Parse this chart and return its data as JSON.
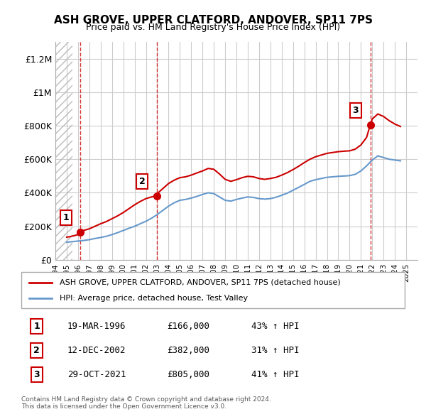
{
  "title": "ASH GROVE, UPPER CLATFORD, ANDOVER, SP11 7PS",
  "subtitle": "Price paid vs. HM Land Registry's House Price Index (HPI)",
  "ylim": [
    0,
    1300000
  ],
  "xlim_start": 1994.0,
  "xlim_end": 2026.0,
  "yticks": [
    0,
    200000,
    400000,
    600000,
    800000,
    1000000,
    1200000
  ],
  "ytick_labels": [
    "£0",
    "£200K",
    "£400K",
    "£600K",
    "£800K",
    "£1M",
    "£1.2M"
  ],
  "xticks": [
    1994,
    1995,
    1996,
    1997,
    1998,
    1999,
    2000,
    2001,
    2002,
    2003,
    2004,
    2005,
    2006,
    2007,
    2008,
    2009,
    2010,
    2011,
    2012,
    2013,
    2014,
    2015,
    2016,
    2017,
    2018,
    2019,
    2020,
    2021,
    2022,
    2023,
    2024,
    2025
  ],
  "sale_dates": [
    1996.22,
    2002.95,
    2021.83
  ],
  "sale_prices": [
    166000,
    382000,
    805000
  ],
  "sale_labels": [
    "1",
    "2",
    "3"
  ],
  "hpi_x": [
    1995.0,
    1995.5,
    1996.0,
    1996.5,
    1997.0,
    1997.5,
    1998.0,
    1998.5,
    1999.0,
    1999.5,
    2000.0,
    2000.5,
    2001.0,
    2001.5,
    2002.0,
    2002.5,
    2003.0,
    2003.5,
    2004.0,
    2004.5,
    2005.0,
    2005.5,
    2006.0,
    2006.5,
    2007.0,
    2007.5,
    2008.0,
    2008.5,
    2009.0,
    2009.5,
    2010.0,
    2010.5,
    2011.0,
    2011.5,
    2012.0,
    2012.5,
    2013.0,
    2013.5,
    2014.0,
    2014.5,
    2015.0,
    2015.5,
    2016.0,
    2016.5,
    2017.0,
    2017.5,
    2018.0,
    2018.5,
    2019.0,
    2019.5,
    2020.0,
    2020.5,
    2021.0,
    2021.5,
    2022.0,
    2022.5,
    2023.0,
    2023.5,
    2024.0,
    2024.5
  ],
  "hpi_y": [
    105000,
    108000,
    112000,
    115000,
    120000,
    127000,
    133000,
    140000,
    150000,
    162000,
    175000,
    188000,
    200000,
    215000,
    230000,
    248000,
    270000,
    295000,
    320000,
    340000,
    355000,
    360000,
    368000,
    378000,
    390000,
    400000,
    395000,
    375000,
    355000,
    350000,
    360000,
    368000,
    375000,
    372000,
    365000,
    362000,
    365000,
    373000,
    385000,
    398000,
    415000,
    432000,
    450000,
    468000,
    478000,
    485000,
    492000,
    495000,
    498000,
    500000,
    502000,
    510000,
    530000,
    560000,
    595000,
    620000,
    610000,
    600000,
    595000,
    590000
  ],
  "red_line_x": [
    1995.0,
    1995.3,
    1995.6,
    1995.9,
    1996.0,
    1996.22,
    1996.5,
    1997.0,
    1997.5,
    1998.0,
    1998.5,
    1999.0,
    1999.5,
    2000.0,
    2000.5,
    2001.0,
    2001.5,
    2002.0,
    2002.5,
    2002.95,
    2003.0,
    2003.5,
    2004.0,
    2004.5,
    2005.0,
    2005.5,
    2006.0,
    2006.5,
    2007.0,
    2007.5,
    2008.0,
    2008.5,
    2009.0,
    2009.5,
    2010.0,
    2010.5,
    2011.0,
    2011.5,
    2012.0,
    2012.5,
    2013.0,
    2013.5,
    2014.0,
    2014.5,
    2015.0,
    2015.5,
    2016.0,
    2016.5,
    2017.0,
    2017.5,
    2018.0,
    2018.5,
    2019.0,
    2019.5,
    2020.0,
    2020.5,
    2021.0,
    2021.5,
    2021.83,
    2022.0,
    2022.5,
    2023.0,
    2023.5,
    2024.0,
    2024.5
  ],
  "red_line_y": [
    135000,
    138000,
    143000,
    148000,
    152000,
    166000,
    175000,
    185000,
    200000,
    215000,
    228000,
    245000,
    262000,
    282000,
    305000,
    328000,
    348000,
    365000,
    375000,
    382000,
    395000,
    425000,
    455000,
    475000,
    490000,
    495000,
    505000,
    518000,
    530000,
    545000,
    540000,
    512000,
    480000,
    468000,
    478000,
    490000,
    498000,
    495000,
    485000,
    480000,
    485000,
    492000,
    505000,
    520000,
    538000,
    558000,
    580000,
    600000,
    615000,
    625000,
    635000,
    640000,
    645000,
    648000,
    650000,
    660000,
    685000,
    730000,
    805000,
    840000,
    870000,
    855000,
    830000,
    810000,
    795000
  ],
  "legend_line1_label": "ASH GROVE, UPPER CLATFORD, ANDOVER, SP11 7PS (detached house)",
  "legend_line2_label": "HPI: Average price, detached house, Test Valley",
  "table_data": [
    [
      "1",
      "19-MAR-1996",
      "£166,000",
      "43% ↑ HPI"
    ],
    [
      "2",
      "12-DEC-2002",
      "£382,000",
      "31% ↑ HPI"
    ],
    [
      "3",
      "29-OCT-2021",
      "£805,000",
      "41% ↑ HPI"
    ]
  ],
  "footnote": "Contains HM Land Registry data © Crown copyright and database right 2024.\nThis data is licensed under the Open Government Licence v3.0.",
  "red_color": "#cc0000",
  "blue_color": "#6699cc",
  "hatch_color": "#cccccc",
  "grid_color": "#cccccc",
  "bg_hatch_end": 1995.5
}
